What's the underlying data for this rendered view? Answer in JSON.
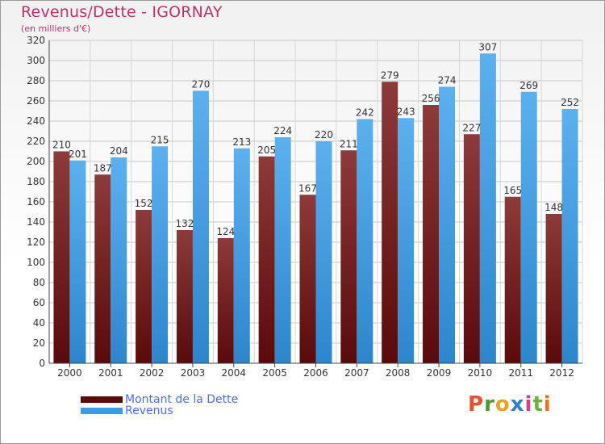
{
  "header": {
    "title": "Revenus/Dette - IGORNAY",
    "subtitle": "(en milliers d'€)"
  },
  "logo": {
    "text": "Proxiti",
    "colors": [
      "#e8502e",
      "#4a9a2e",
      "#f0a020",
      "#2f7fd0",
      "#d43c8c",
      "#6ab33c",
      "#f07020"
    ]
  },
  "colors": {
    "dette_dark": "#5a0a0a",
    "dette_light": "#8c3a3a",
    "revenus_dark": "#2d86cc",
    "revenus_light": "#5cb0ee"
  },
  "chart_data": {
    "type": "bar",
    "title": "Revenus/Dette - IGORNAY",
    "subtitle": "(en milliers d'€)",
    "categories": [
      "2000",
      "2001",
      "2002",
      "2003",
      "2004",
      "2005",
      "2006",
      "2007",
      "2008",
      "2009",
      "2010",
      "2011",
      "2012"
    ],
    "series": [
      {
        "name": "Montant de la Dette",
        "values": [
          210,
          187,
          152,
          132,
          124,
          205,
          167,
          211,
          279,
          256,
          227,
          165,
          148
        ]
      },
      {
        "name": "Revenus",
        "values": [
          201,
          204,
          215,
          270,
          213,
          224,
          220,
          242,
          243,
          274,
          307,
          269,
          252
        ]
      }
    ],
    "ylim": [
      0,
      320
    ],
    "yticks": [
      0,
      20,
      40,
      60,
      80,
      100,
      120,
      140,
      160,
      180,
      200,
      220,
      240,
      260,
      280,
      300,
      320
    ],
    "grid": true,
    "legend_position": "bottom-left"
  }
}
